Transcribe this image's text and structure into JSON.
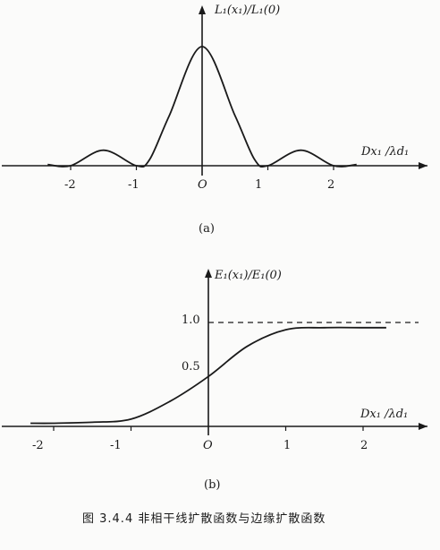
{
  "figure": {
    "caption": "图 3.4.4  非相干线扩散函数与边缘扩散函数"
  },
  "chart_data": [
    {
      "type": "line",
      "panel_label": "(a)",
      "ylabel": "L₁(x₁)/L₁(0)",
      "xlabel": "Dx₁ /λd₁",
      "x_ticks": [
        "-2",
        "-1",
        "O",
        "1",
        "2"
      ],
      "xlim": [
        -2.6,
        2.6
      ],
      "series": [
        {
          "x": [
            -2.0,
            -1.5,
            -1.0,
            -0.8,
            -0.5,
            0.0,
            0.5,
            0.8,
            1.0,
            1.5,
            2.0
          ],
          "values": [
            0.0,
            0.13,
            0.0,
            0.05,
            0.42,
            1.0,
            0.42,
            0.05,
            0.0,
            0.13,
            0.0
          ]
        }
      ],
      "grid": false
    },
    {
      "type": "line",
      "panel_label": "(b)",
      "ylabel": "E₁(x₁)/E₁(0)",
      "xlabel": "Dx₁ /λd₁",
      "x_ticks": [
        "-2",
        "-1",
        "O",
        "1",
        "2"
      ],
      "y_ticks": [
        "1.0",
        "0.5"
      ],
      "xlim": [
        -2.3,
        2.6
      ],
      "ylim": [
        0,
        1.05
      ],
      "reference_line": {
        "y": 1.0,
        "style": "dashed"
      },
      "series": [
        {
          "x": [
            -2.0,
            -1.5,
            -1.0,
            -0.5,
            0.0,
            0.5,
            1.0,
            1.5,
            2.0
          ],
          "values": [
            0.03,
            0.04,
            0.07,
            0.24,
            0.48,
            0.77,
            0.93,
            0.95,
            0.95
          ]
        }
      ],
      "grid": false
    }
  ]
}
